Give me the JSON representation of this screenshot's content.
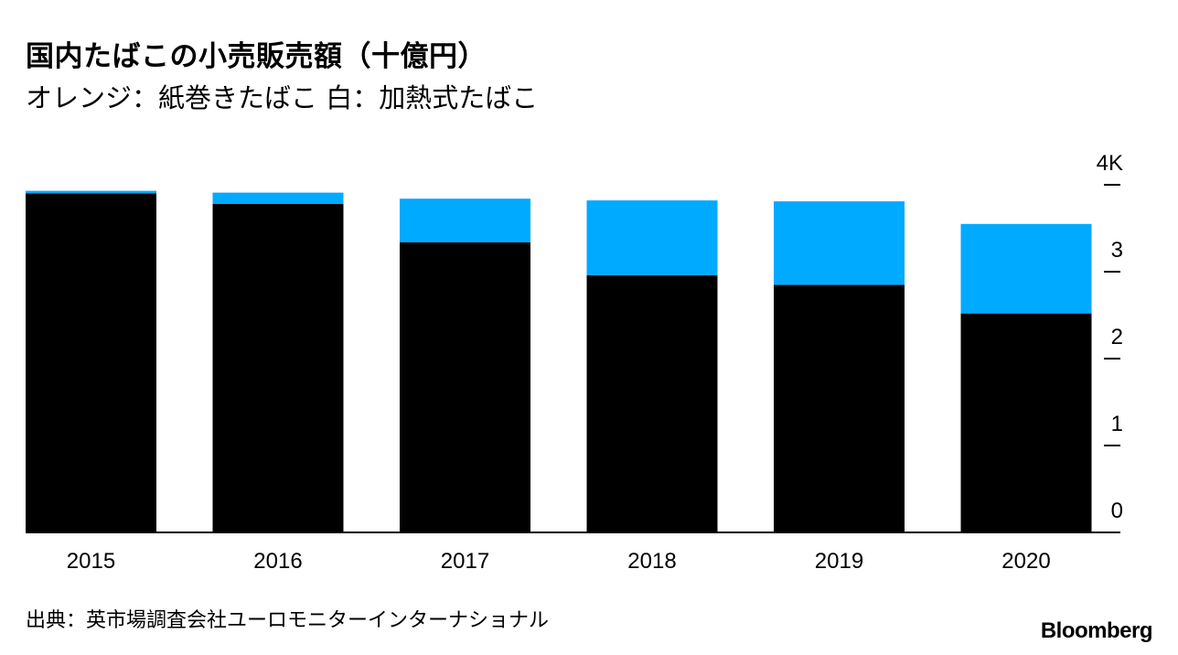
{
  "header": {
    "title": "国内たばこの小売販売額（十億円）",
    "subtitle": "オレンジ：紙巻きたばこ 白：加熱式たばこ"
  },
  "footer": {
    "source": "出典：英市場調査会社ユーロモニターインターナショナル",
    "brand": "Bloomberg"
  },
  "colors": {
    "cigarette": "#000000",
    "heated": "#00aaff",
    "axis": "#000000",
    "background": "#ffffff"
  },
  "chart_data": {
    "type": "bar",
    "stacked": true,
    "categories": [
      "2015",
      "2016",
      "2017",
      "2018",
      "2019",
      "2020"
    ],
    "series": [
      {
        "name": "紙巻きたばこ",
        "color": "#000000",
        "values": [
          3900,
          3780,
          3340,
          2960,
          2850,
          2520
        ]
      },
      {
        "name": "加熱式たばこ",
        "color": "#00aaff",
        "values": [
          30,
          130,
          500,
          860,
          960,
          1030
        ]
      }
    ],
    "y_ticks": [
      "0",
      "1",
      "2",
      "3",
      "4K"
    ],
    "y_tick_values": [
      0,
      1000,
      2000,
      3000,
      4000
    ],
    "ylim": [
      0,
      4000
    ],
    "y_axis_side": "right",
    "title": "国内たばこの小売販売額（十億円）",
    "xlabel": "",
    "ylabel": ""
  }
}
